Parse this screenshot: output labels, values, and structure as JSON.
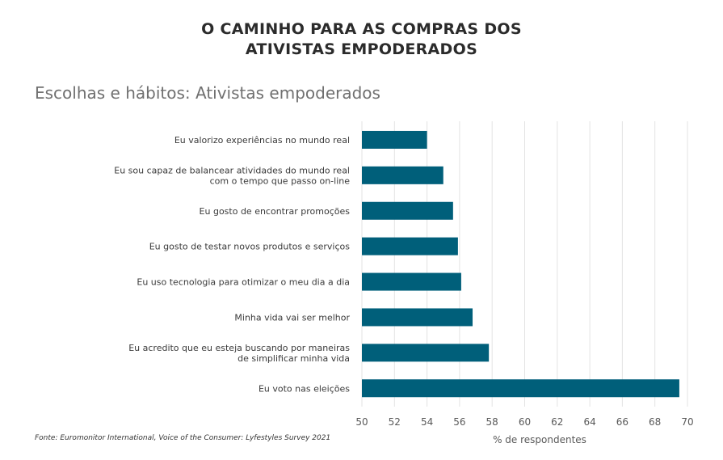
{
  "header": {
    "title_line1": "O CAMINHO PARA AS COMPRAS DOS",
    "title_line2": "ATIVISTAS EMPODERADOS"
  },
  "source_note": "Fonte: Euromonitor International, Voice of the Consumer: Lyfestyles Survey 2021",
  "colors": {
    "bar": "#005f7a",
    "grid": "#e3e3e3",
    "text": "#333333"
  },
  "chart_data": {
    "type": "bar",
    "orientation": "horizontal",
    "title": "Escolhas e hábitos: Ativistas empoderados",
    "xlabel": "% de respondentes",
    "ylabel": "",
    "xlim": [
      50,
      70
    ],
    "xticks": [
      50,
      52,
      54,
      56,
      58,
      60,
      62,
      64,
      66,
      68,
      70
    ],
    "grid": true,
    "categories": [
      [
        "Eu valorizo experiências no mundo real"
      ],
      [
        "Eu sou capaz de balancear atividades do mundo real",
        "com o tempo que passo on-line"
      ],
      [
        "Eu gosto de encontrar promoções"
      ],
      [
        "Eu gosto de testar novos produtos e serviços"
      ],
      [
        "Eu uso tecnologia para otimizar o meu dia a dia"
      ],
      [
        "Minha vida vai ser melhor"
      ],
      [
        "Eu acredito que eu esteja buscando por maneiras",
        "de simplificar minha vida"
      ],
      [
        "Eu voto nas eleições"
      ]
    ],
    "values": [
      54.0,
      55.0,
      55.6,
      55.9,
      56.1,
      56.8,
      57.8,
      69.5
    ]
  }
}
